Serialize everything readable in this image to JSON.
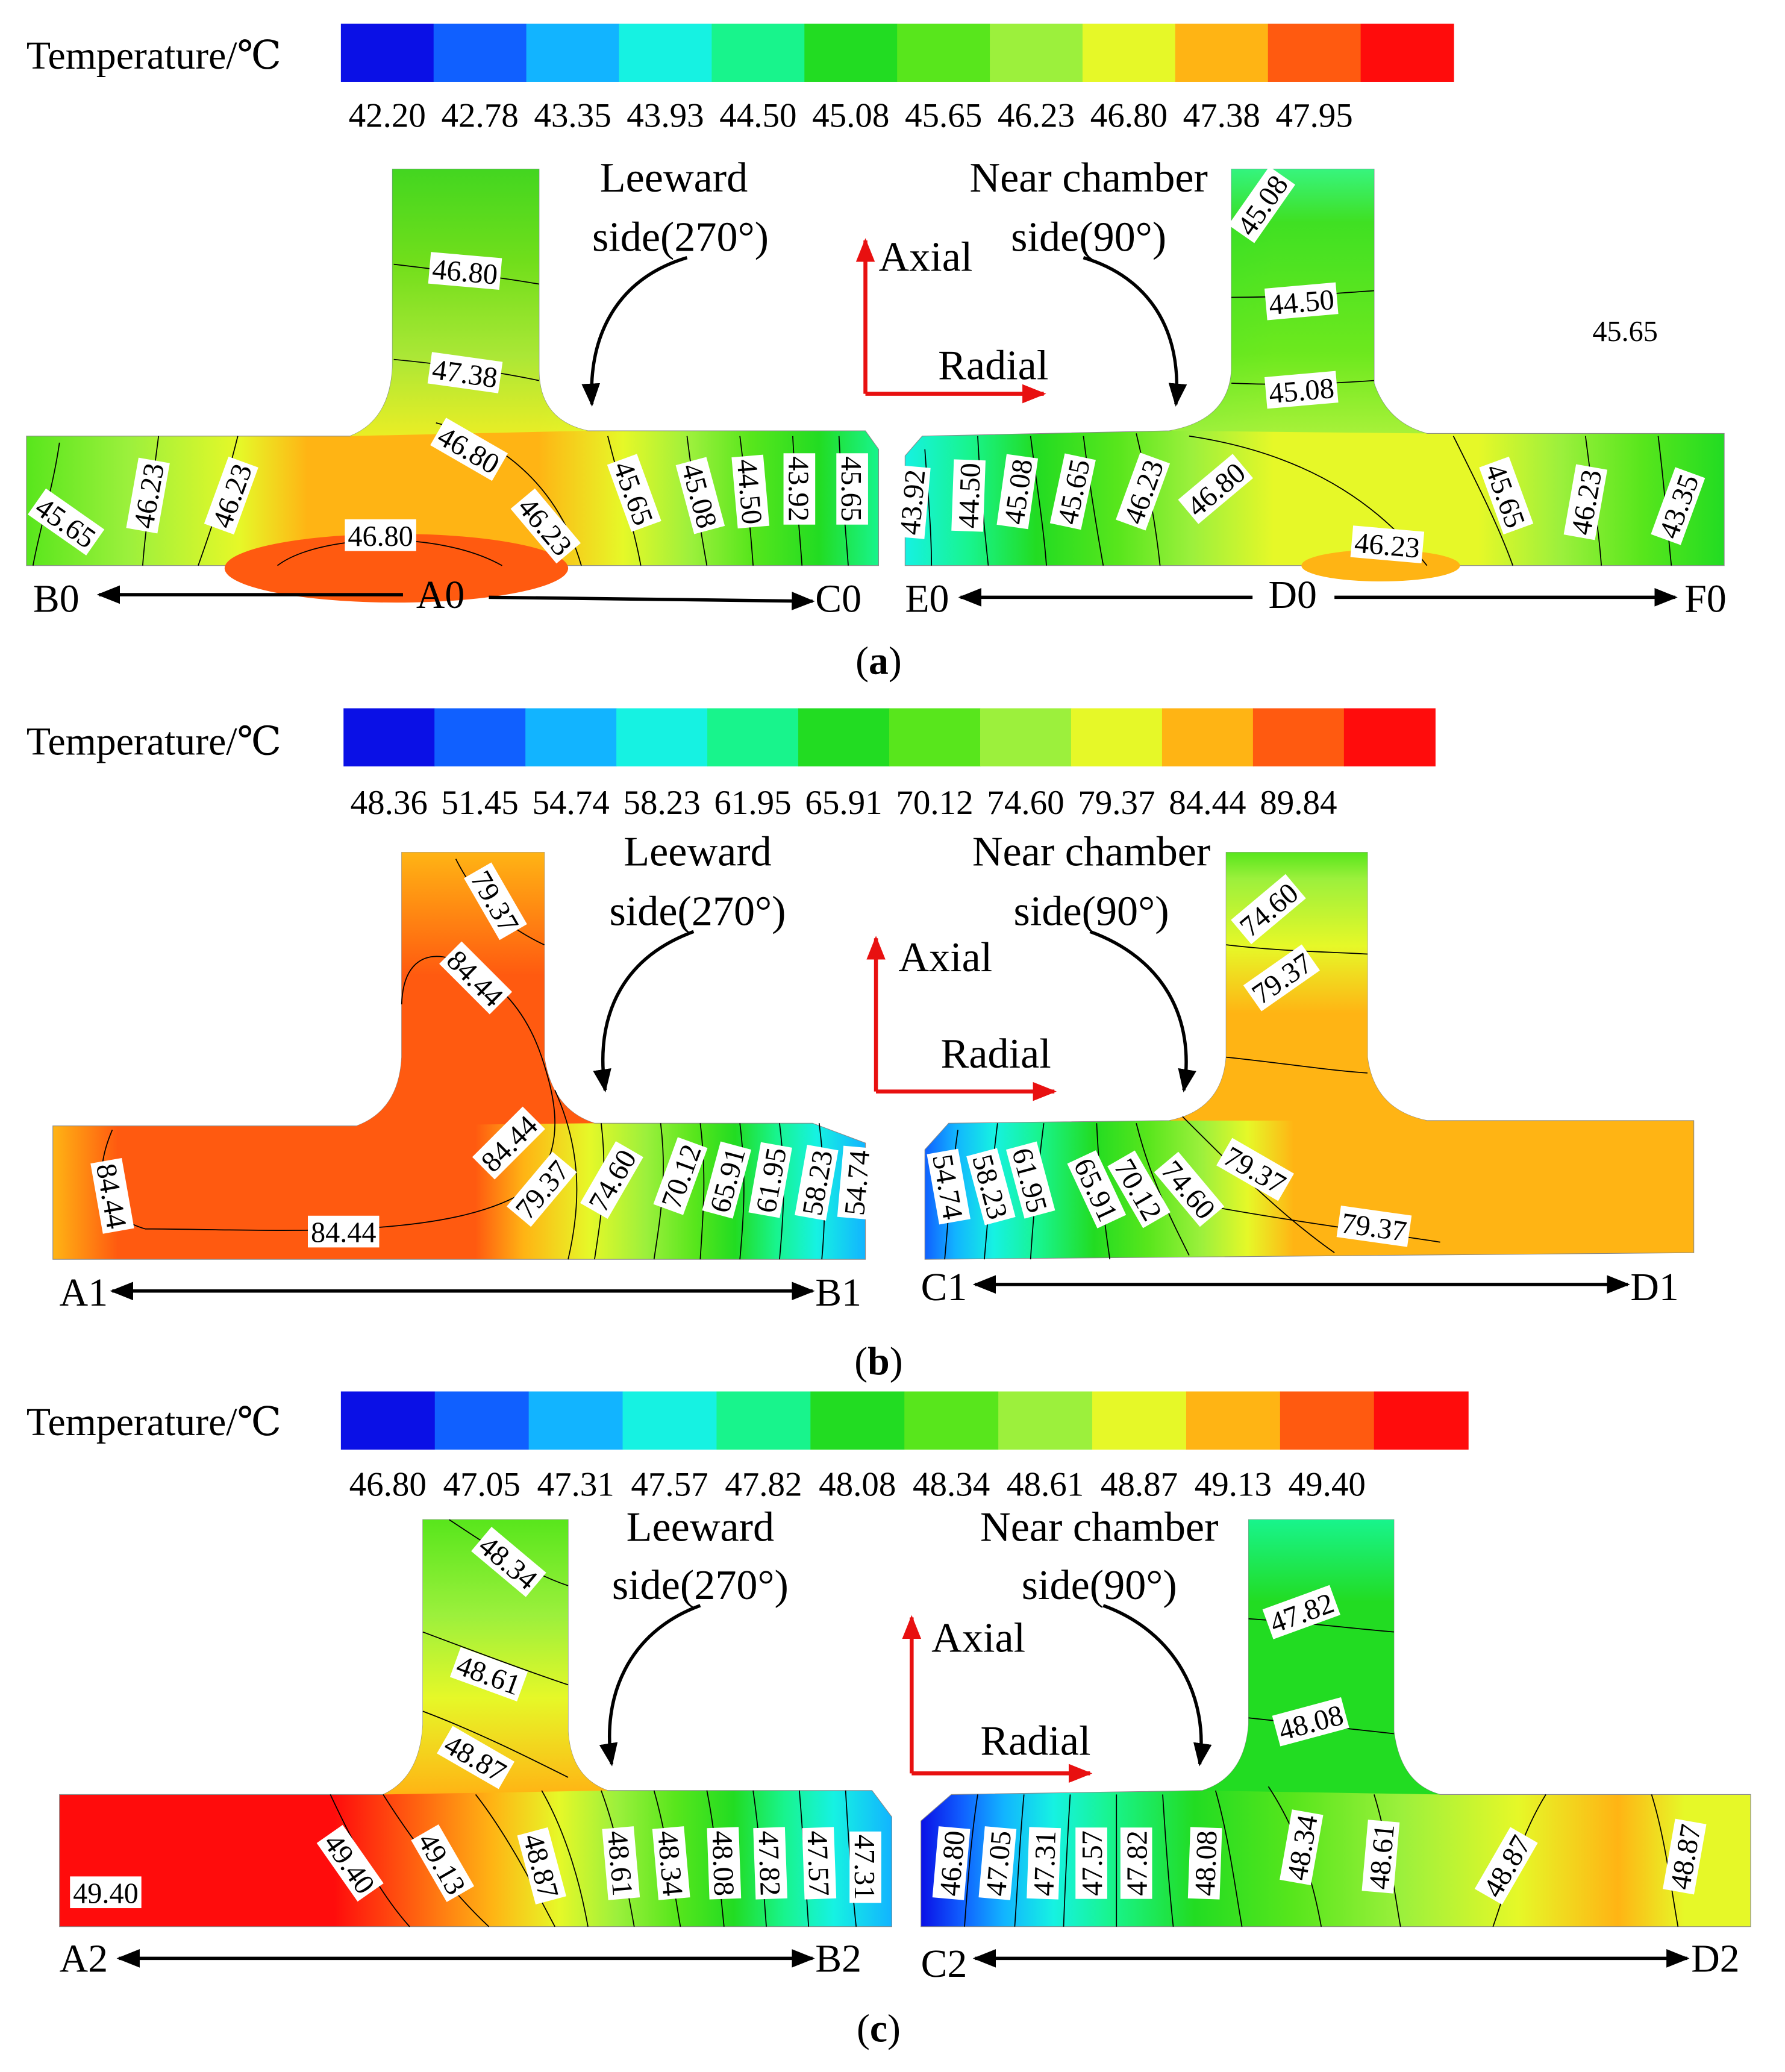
{
  "legend_title": "Temperature/℃",
  "colors": [
    "#0a10e6",
    "#1060ff",
    "#12b4ff",
    "#16f2e2",
    "#18f48c",
    "#22dc22",
    "#58e61c",
    "#9cf03c",
    "#e6f828",
    "#ffb414",
    "#ff5a10",
    "#ff0c0c"
  ],
  "panels": [
    {
      "caption": "(a)",
      "caption_letter": "a",
      "scale": [
        "42.20",
        "42.78",
        "43.35",
        "43.93",
        "44.50",
        "45.08",
        "45.65",
        "46.23",
        "46.80",
        "47.38",
        "47.95"
      ],
      "leeward_line1": "Leeward",
      "leeward_line2": "side(270°)",
      "near_line1": "Near chamber",
      "near_line2": "side(90°)",
      "axial": "Axial",
      "radial": "Radial",
      "left_axis": {
        "left": "B0",
        "mid": "A0",
        "right": "C0"
      },
      "right_axis": {
        "left": "E0",
        "mid": "D0",
        "right": "F0"
      },
      "contours": [
        "45.65",
        "46.23",
        "46.23",
        "46.80",
        "47.38",
        "46.80",
        "46.80",
        "46.23",
        "45.65",
        "45.08",
        "44.50",
        "43.92",
        "45.65",
        "46.23",
        "43.35",
        "43.92",
        "44.50",
        "45.08",
        "45.65",
        "46.23",
        "46.80",
        "46.23",
        "45.65",
        "45.08",
        "44.50",
        "45.08",
        "45.65"
      ]
    },
    {
      "caption": "(b)",
      "caption_letter": "b",
      "scale": [
        "48.36",
        "51.45",
        "54.74",
        "58.23",
        "61.95",
        "65.91",
        "70.12",
        "74.60",
        "79.37",
        "84.44",
        "89.84"
      ],
      "leeward_line1": "Leeward",
      "leeward_line2": "side(270°)",
      "near_line1": "Near chamber",
      "near_line2": "side(90°)",
      "axial": "Axial",
      "radial": "Radial",
      "left_axis": {
        "left": "A1",
        "right": "B1"
      },
      "right_axis": {
        "left": "C1",
        "right": "D1"
      },
      "contours": [
        "79.37",
        "84.44",
        "84.44",
        "84.44",
        "84.44",
        "79.37",
        "74.60",
        "70.12",
        "65.91",
        "61.95",
        "58.23",
        "54.74",
        "74.60",
        "79.37",
        "54.74",
        "58.23",
        "61.95",
        "65.91",
        "70.12",
        "74.60",
        "79.37",
        "79.37"
      ]
    },
    {
      "caption": "(c)",
      "caption_letter": "c",
      "scale": [
        "46.80",
        "47.05",
        "47.31",
        "47.57",
        "47.82",
        "48.08",
        "48.34",
        "48.61",
        "48.87",
        "49.13",
        "49.40"
      ],
      "leeward_line1": "Leeward",
      "leeward_line2": "side(270°)",
      "near_line1": "Near chamber",
      "near_line2": "side(90°)",
      "axial": "Axial",
      "radial": "Radial",
      "left_axis": {
        "left": "A2",
        "right": "B2"
      },
      "right_axis": {
        "left": "C2",
        "right": "D2"
      },
      "contours": [
        "48.34",
        "48.61",
        "48.87",
        "49.40",
        "49.40",
        "49.13",
        "48.87",
        "48.61",
        "48.34",
        "48.08",
        "47.82",
        "47.57",
        "47.31",
        "47.82",
        "48.08",
        "46.80",
        "47.05",
        "47.31",
        "47.57",
        "47.82",
        "48.08",
        "48.34",
        "48.61",
        "48.87",
        "48.87"
      ]
    }
  ]
}
